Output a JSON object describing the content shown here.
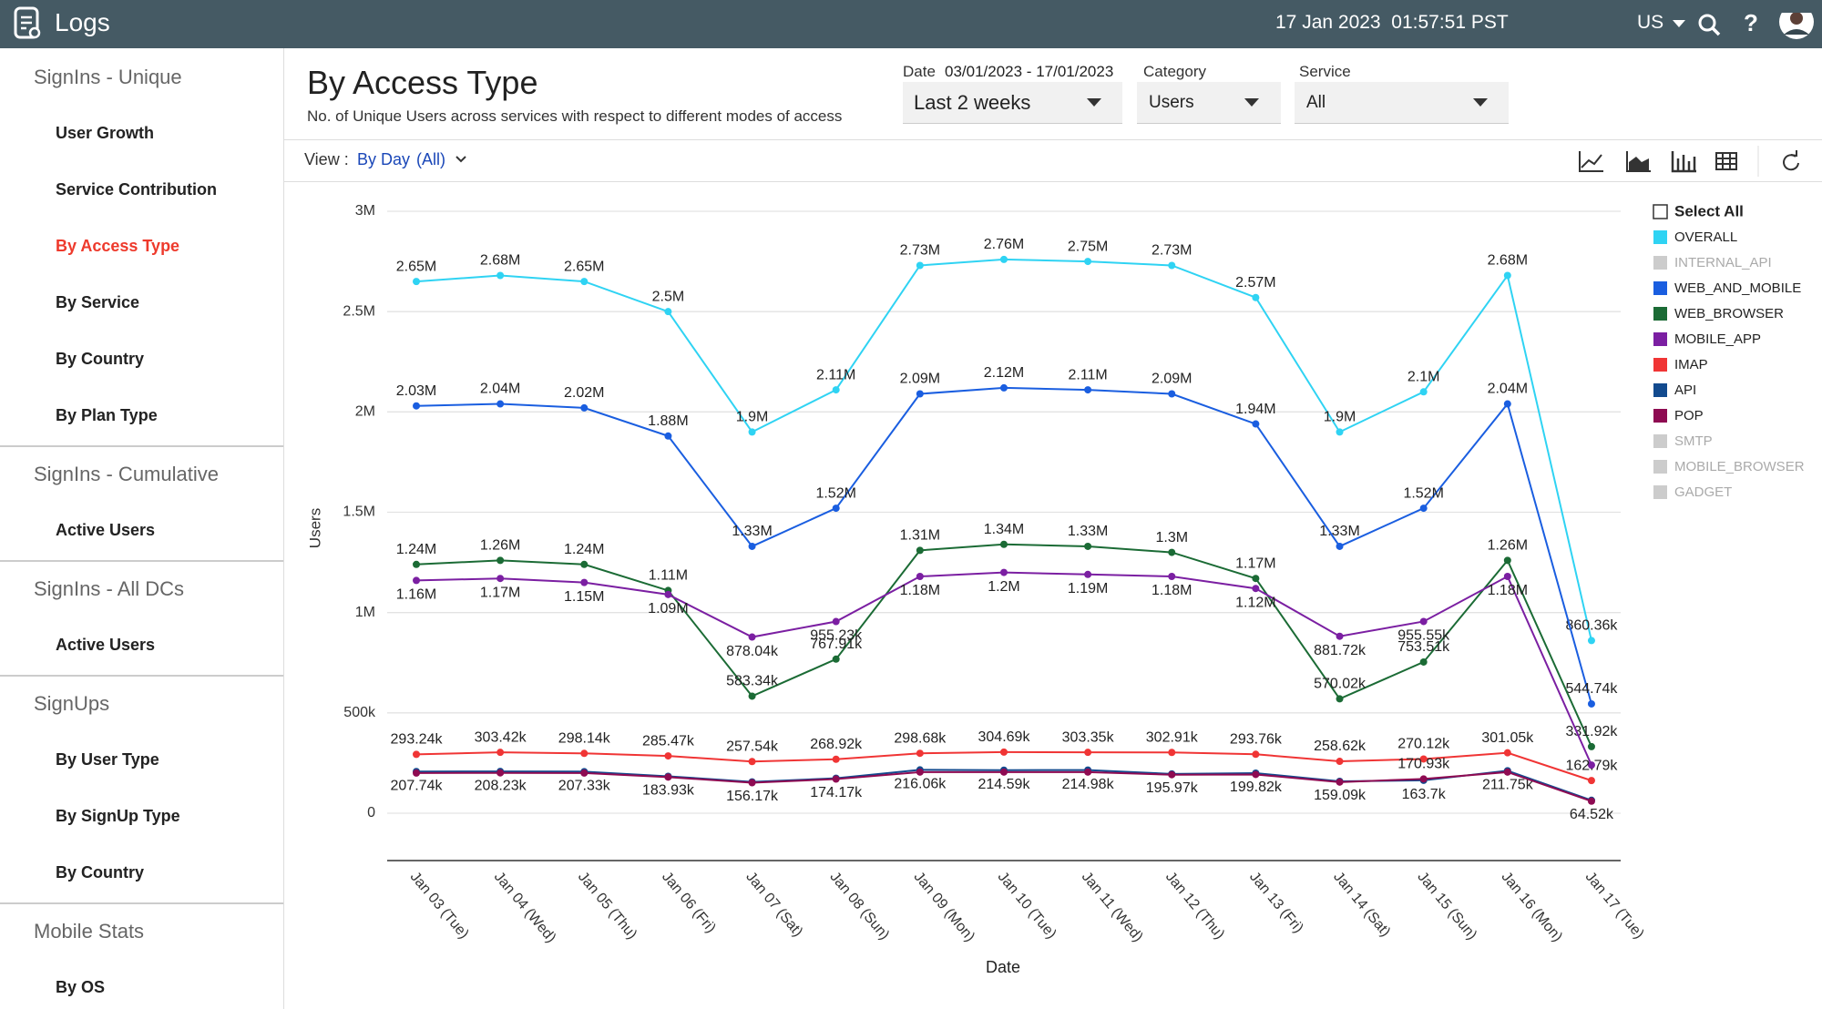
{
  "header": {
    "app": "Logs",
    "datetime": "17 Jan 2023  01:57:51 PST",
    "region": "US"
  },
  "sidebar": {
    "sections": [
      {
        "title": "SignIns - Unique",
        "items": [
          "User Growth",
          "Service Contribution",
          "By Access Type",
          "By Service",
          "By Country",
          "By Plan Type"
        ]
      },
      {
        "title": "SignIns - Cumulative",
        "items": [
          "Active Users"
        ]
      },
      {
        "title": "SignIns - All DCs",
        "items": [
          "Active Users"
        ]
      },
      {
        "title": "SignUps",
        "items": [
          "By User Type",
          "By SignUp Type",
          "By Country"
        ]
      },
      {
        "title": "Mobile Stats",
        "items": [
          "By OS"
        ]
      }
    ],
    "selected": {
      "section": 0,
      "item": 2
    }
  },
  "page": {
    "title": "By Access Type",
    "subtitle": "No. of Unique Users across services with respect to different modes of access"
  },
  "filters": {
    "date": {
      "label": "Date",
      "range": "03/01/2023 - 17/01/2023",
      "value": "Last 2 weeks"
    },
    "category": {
      "label": "Category",
      "value": "Users"
    },
    "service": {
      "label": "Service",
      "value": "All"
    }
  },
  "view": {
    "label": "View :",
    "value": "By Day",
    "scope": "(All)"
  },
  "chart_data": {
    "type": "line",
    "x_label": "Date",
    "y_label": "Users",
    "legend_select_all": "Select All",
    "grid": true,
    "legend": "right",
    "categories": [
      "Jan 03 (Tue)",
      "Jan 04 (Wed)",
      "Jan 05 (Thu)",
      "Jan 06 (Fri)",
      "Jan 07 (Sat)",
      "Jan 08 (Sun)",
      "Jan 09 (Mon)",
      "Jan 10 (Tue)",
      "Jan 11 (Wed)",
      "Jan 12 (Thu)",
      "Jan 13 (Fri)",
      "Jan 14 (Sat)",
      "Jan 15 (Sun)",
      "Jan 16 (Mon)",
      "Jan 17 (Tue)"
    ],
    "ylim": [
      0,
      3000000
    ],
    "yticks": [
      0,
      {
        "value": 500000,
        "label": "500k"
      },
      {
        "value": 1000000,
        "label": "1M"
      },
      {
        "value": 1500000,
        "label": "1.5M"
      },
      {
        "value": 2000000,
        "label": "2M"
      },
      {
        "value": 2500000,
        "label": "2.5M"
      },
      {
        "value": 3000000,
        "label": "3M"
      }
    ],
    "series": [
      {
        "name": "OVERALL",
        "color": "#2fd3f3",
        "visible": true,
        "values": [
          2650000,
          2680000,
          2650000,
          2500000,
          1900000,
          2110000,
          2730000,
          2760000,
          2750000,
          2730000,
          2570000,
          1900000,
          2100000,
          2680000,
          860360
        ],
        "value_labels": [
          "2.65M",
          "2.68M",
          "2.65M",
          "2.5M",
          "1.9M",
          "2.11M",
          "2.73M",
          "2.76M",
          "2.75M",
          "2.73M",
          "2.57M",
          "1.9M",
          "2.1M",
          "2.68M",
          "860.36k"
        ]
      },
      {
        "name": "INTERNAL_API",
        "color": "#cccccc",
        "visible": false,
        "values": [
          null,
          null,
          null,
          null,
          null,
          null,
          null,
          null,
          null,
          null,
          null,
          null,
          null,
          null,
          null
        ]
      },
      {
        "name": "WEB_AND_MOBILE",
        "color": "#1a5ee0",
        "visible": true,
        "values": [
          2030000,
          2040000,
          2020000,
          1880000,
          1330000,
          1520000,
          2090000,
          2120000,
          2110000,
          2090000,
          1940000,
          1330000,
          1520000,
          2040000,
          544740
        ],
        "value_labels": [
          "2.03M",
          "2.04M",
          "2.02M",
          "1.88M",
          "1.33M",
          "1.52M",
          "2.09M",
          "2.12M",
          "2.11M",
          "2.09M",
          "1.94M",
          "1.33M",
          "1.52M",
          "2.04M",
          "544.74k"
        ]
      },
      {
        "name": "WEB_BROWSER",
        "color": "#1b6b35",
        "visible": true,
        "values": [
          1240000,
          1260000,
          1240000,
          1110000,
          583340,
          767910,
          1310000,
          1340000,
          1330000,
          1300000,
          1170000,
          570020,
          753510,
          1260000,
          331920
        ],
        "value_labels": [
          "1.24M",
          "1.26M",
          "1.24M",
          "1.11M",
          "583.34k",
          "767.91k",
          "1.31M",
          "1.34M",
          "1.33M",
          "1.3M",
          "1.17M",
          "570.02k",
          "753.51k",
          "1.26M",
          "331.92k"
        ]
      },
      {
        "name": "MOBILE_APP",
        "color": "#7b1fa2",
        "visible": true,
        "values": [
          1160000,
          1170000,
          1150000,
          1090000,
          878040,
          955230,
          1180000,
          1200000,
          1190000,
          1180000,
          1120000,
          881720,
          955550,
          1180000,
          240000
        ],
        "value_labels": [
          "1.16M",
          "1.17M",
          "1.15M",
          "1.09M",
          "878.04k",
          "955.23k",
          "1.18M",
          "1.2M",
          "1.19M",
          "1.18M",
          "1.12M",
          "881.72k",
          "955.55k",
          "1.18M",
          null
        ]
      },
      {
        "name": "IMAP",
        "color": "#f03535",
        "visible": true,
        "values": [
          293240,
          303420,
          298140,
          285470,
          257540,
          268920,
          298680,
          304690,
          303350,
          302910,
          293760,
          258620,
          270120,
          301050,
          162790
        ],
        "value_labels": [
          "293.24k",
          "303.42k",
          "298.14k",
          "285.47k",
          "257.54k",
          "268.92k",
          "298.68k",
          "304.69k",
          "303.35k",
          "302.91k",
          "293.76k",
          "258.62k",
          "270.12k",
          "301.05k",
          "162.79k"
        ]
      },
      {
        "name": "API",
        "color": "#124a8e",
        "visible": true,
        "values": [
          207740,
          208230,
          207330,
          183930,
          156170,
          174170,
          216060,
          214590,
          214980,
          195970,
          199820,
          159090,
          163700,
          211750,
          64520
        ],
        "value_labels": [
          "207.74k",
          "208.23k",
          "207.33k",
          "183.93k",
          "156.17k",
          "174.17k",
          "216.06k",
          "214.59k",
          "214.98k",
          "195.97k",
          "199.82k",
          "159.09k",
          "163.7k",
          "211.75k",
          "64.52k"
        ]
      },
      {
        "name": "POP",
        "color": "#8e0b52",
        "visible": true,
        "values": [
          200000,
          201000,
          200000,
          180000,
          152000,
          170000,
          205000,
          205000,
          205000,
          192000,
          193000,
          155000,
          170930,
          205000,
          60000
        ],
        "value_labels": [
          null,
          null,
          null,
          null,
          null,
          null,
          null,
          null,
          null,
          null,
          null,
          null,
          "170.93k",
          null,
          null
        ]
      },
      {
        "name": "SMTP",
        "color": "#cccccc",
        "visible": false,
        "values": [
          null,
          null,
          null,
          null,
          null,
          null,
          null,
          null,
          null,
          null,
          null,
          null,
          null,
          null,
          null
        ]
      },
      {
        "name": "MOBILE_BROWSER",
        "color": "#cccccc",
        "visible": false,
        "values": [
          null,
          null,
          null,
          null,
          null,
          null,
          null,
          null,
          null,
          null,
          null,
          null,
          null,
          null,
          null
        ]
      },
      {
        "name": "GADGET",
        "color": "#cccccc",
        "visible": false,
        "values": [
          null,
          null,
          null,
          null,
          null,
          null,
          null,
          null,
          null,
          null,
          null,
          null,
          null,
          null,
          null
        ]
      }
    ]
  }
}
